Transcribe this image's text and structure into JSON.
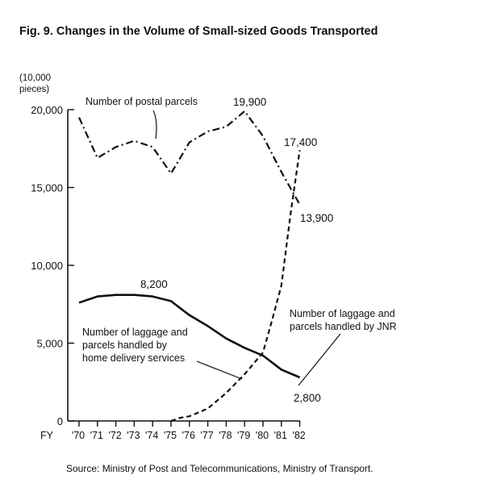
{
  "chart_data": {
    "type": "line",
    "title": "Fig. 9.   Changes in the Volume of Small-sized Goods Transported",
    "ylabel_lines": [
      "(10,000",
      "pieces)"
    ],
    "xlabel_prefix": "FY",
    "source": "Source:  Ministry of Post and Telecommunications, Ministry of Transport.",
    "ylim": [
      0,
      20000
    ],
    "yticks": [
      {
        "value": 0,
        "label": "0"
      },
      {
        "value": 5000,
        "label": "5,000"
      },
      {
        "value": 10000,
        "label": "10,000"
      },
      {
        "value": 15000,
        "label": "15,000"
      },
      {
        "value": 20000,
        "label": "20,000"
      }
    ],
    "categories": [
      "'70",
      "'71",
      "'72",
      "'73",
      "'74",
      "'75",
      "'76",
      "'77",
      "'78",
      "'79",
      "'80",
      "'81",
      "'82"
    ],
    "series": [
      {
        "id": "postal",
        "name": "Number of postal parcels",
        "style": "dashdot",
        "values": [
          19500,
          16900,
          17600,
          18000,
          17600,
          15900,
          17900,
          18600,
          18900,
          19900,
          18300,
          16000,
          13900
        ]
      },
      {
        "id": "jnr",
        "name": "Number of laggage and parcels handled by JNR",
        "style": "solid",
        "values": [
          7600,
          8000,
          8100,
          8100,
          8000,
          7700,
          6800,
          6100,
          5300,
          4700,
          4200,
          3300,
          2800
        ]
      },
      {
        "id": "home",
        "name": "Number of laggage and parcels handled by home delivery services",
        "style": "dashed",
        "points": [
          [
            5,
            0
          ],
          [
            5.5,
            200
          ],
          [
            6,
            300
          ],
          [
            7,
            800
          ],
          [
            8,
            1800
          ],
          [
            9,
            3000
          ],
          [
            10,
            4400
          ],
          [
            10.5,
            6500
          ],
          [
            11,
            8700
          ],
          [
            11.5,
            13300
          ],
          [
            12,
            17400
          ]
        ]
      }
    ],
    "annotations": [
      {
        "id": "ann-19900",
        "text": "19,900"
      },
      {
        "id": "ann-17400",
        "text": "17,400"
      },
      {
        "id": "ann-13900",
        "text": "13,900"
      },
      {
        "id": "ann-8200",
        "text": "8,200"
      },
      {
        "id": "ann-2800",
        "text": "2,800"
      }
    ],
    "labels": {
      "postal": [
        "Number of postal parcels"
      ],
      "jnr": [
        "Number of laggage and",
        "parcels handled by JNR"
      ],
      "home": [
        "Number of laggage and",
        "parcels handled by",
        "home delivery services"
      ]
    }
  }
}
